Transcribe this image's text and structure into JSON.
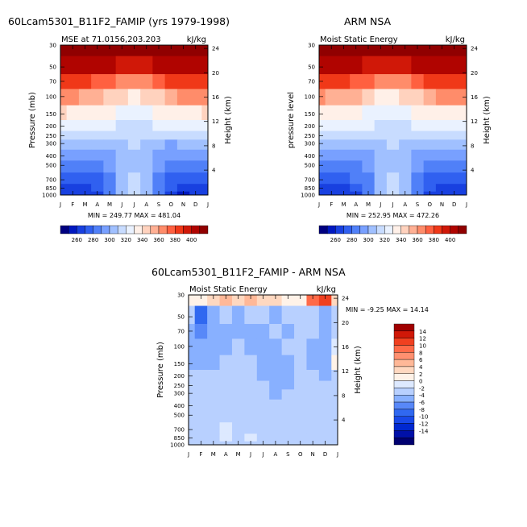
{
  "figure": {
    "left_title": "60Lcam5301_B11F2_FAMIP (yrs 1979-1998)",
    "right_title": "ARM NSA",
    "diff_title": "60Lcam5301_B11F2_FAMIP - ARM NSA"
  },
  "chart_data": [
    {
      "type": "heatmap",
      "panel": "model",
      "subtitle_left": "MSE at 71.0156,203.203",
      "subtitle_right": "kJ/kg",
      "ylabel": "Pressure (mb)",
      "ylabel_right": "Height (km)",
      "x_tick_labels": [
        "J",
        "F",
        "M",
        "A",
        "M",
        "J",
        "J",
        "A",
        "S",
        "O",
        "N",
        "D",
        "J"
      ],
      "y_ticks": [
        30,
        50,
        70,
        100,
        150,
        200,
        250,
        300,
        400,
        500,
        700,
        850,
        1000
      ],
      "height_ticks": [
        4,
        8,
        12,
        16,
        20,
        24
      ],
      "min_max_text": "MIN = 249.77  MAX = 481.04",
      "colorbar_labels": [
        "260",
        "280",
        "300",
        "320",
        "340",
        "360",
        "380",
        "400"
      ],
      "colors": [
        "#000080",
        "#0018c0",
        "#1840e0",
        "#3060f0",
        "#5080f8",
        "#78a0ff",
        "#a0c0ff",
        "#c8dcff",
        "#eaf2ff",
        "#fff0e8",
        "#ffd2be",
        "#ffb094",
        "#ff8c6a",
        "#ff6040",
        "#f03818",
        "#d01808",
        "#b00400",
        "#900000"
      ],
      "levels": [
        255,
        260,
        270,
        280,
        290,
        300,
        310,
        320,
        330,
        340,
        350,
        360,
        370,
        380,
        390,
        400,
        410
      ],
      "p_levels": [
        30,
        50,
        70,
        100,
        150,
        200,
        250,
        300,
        400,
        500,
        700,
        850,
        1000
      ],
      "values": [
        [
          410,
          410,
          410,
          410,
          410,
          410,
          410,
          410,
          410,
          410,
          410,
          410,
          410
        ],
        [
          405,
          405,
          404,
          402,
          400,
          397,
          396,
          398,
          401,
          404,
          406,
          405,
          405
        ],
        [
          385,
          384,
          382,
          378,
          373,
          368,
          366,
          369,
          375,
          381,
          385,
          385,
          385
        ],
        [
          362,
          360,
          357,
          352,
          346,
          340,
          338,
          342,
          349,
          356,
          362,
          362,
          362
        ],
        [
          340,
          338,
          336,
          333,
          330,
          327,
          326,
          328,
          331,
          335,
          339,
          339,
          340
        ],
        [
          326,
          325,
          324,
          322,
          320,
          318,
          317,
          318,
          320,
          323,
          326,
          326,
          326
        ],
        [
          315,
          315,
          314,
          313,
          312,
          311,
          311,
          311,
          312,
          313,
          315,
          315,
          315
        ],
        [
          304,
          303,
          302,
          302,
          303,
          308,
          310,
          307,
          302,
          299,
          301,
          303,
          304
        ],
        [
          292,
          291,
          291,
          292,
          295,
          305,
          309,
          304,
          295,
          290,
          290,
          291,
          292
        ],
        [
          285,
          284,
          284,
          286,
          291,
          304,
          308,
          302,
          291,
          285,
          282,
          283,
          285
        ],
        [
          276,
          274,
          275,
          279,
          288,
          304,
          310,
          302,
          288,
          278,
          273,
          274,
          276
        ],
        [
          268,
          266,
          267,
          273,
          286,
          306,
          312,
          303,
          286,
          272,
          265,
          266,
          268
        ],
        [
          262,
          260,
          261,
          268,
          284,
          305,
          311,
          302,
          284,
          268,
          259,
          260,
          262
        ]
      ]
    },
    {
      "type": "heatmap",
      "panel": "obs",
      "subtitle_left": "Moist Static Energy",
      "subtitle_right": "kJ/kg",
      "ylabel": "pressure level",
      "ylabel_right": "Height (km)",
      "x_tick_labels": [
        "J",
        "F",
        "M",
        "A",
        "M",
        "J",
        "J",
        "A",
        "S",
        "O",
        "N",
        "D",
        "J"
      ],
      "y_ticks": [
        30,
        50,
        70,
        100,
        150,
        200,
        250,
        300,
        400,
        500,
        700,
        850,
        1000
      ],
      "height_ticks": [
        4,
        8,
        12,
        16,
        20,
        24
      ],
      "min_max_text": "MIN = 252.95  MAX = 472.26",
      "colorbar_labels": [
        "260",
        "280",
        "300",
        "320",
        "340",
        "360",
        "380",
        "400"
      ],
      "colors": [
        "#000080",
        "#0018c0",
        "#1840e0",
        "#3060f0",
        "#5080f8",
        "#78a0ff",
        "#a0c0ff",
        "#c8dcff",
        "#eaf2ff",
        "#fff0e8",
        "#ffd2be",
        "#ffb094",
        "#ff8c6a",
        "#ff6040",
        "#f03818",
        "#d01808",
        "#b00400",
        "#900000"
      ],
      "levels": [
        255,
        260,
        270,
        280,
        290,
        300,
        310,
        320,
        330,
        340,
        350,
        360,
        370,
        380,
        390,
        400,
        410
      ],
      "p_levels": [
        30,
        50,
        70,
        100,
        150,
        200,
        250,
        300,
        400,
        500,
        700,
        850,
        1000
      ],
      "values": [
        [
          410,
          410,
          410,
          410,
          410,
          410,
          410,
          410,
          410,
          410,
          410,
          410,
          410
        ],
        [
          404,
          404,
          403,
          401,
          399,
          396,
          395,
          397,
          400,
          403,
          405,
          404,
          404
        ],
        [
          384,
          383,
          381,
          377,
          372,
          367,
          365,
          368,
          374,
          380,
          384,
          384,
          384
        ],
        [
          361,
          359,
          356,
          351,
          345,
          339,
          337,
          341,
          348,
          355,
          361,
          361,
          361
        ],
        [
          339,
          337,
          335,
          332,
          329,
          326,
          325,
          327,
          330,
          334,
          338,
          338,
          339
        ],
        [
          326,
          325,
          324,
          322,
          320,
          318,
          317,
          318,
          320,
          323,
          326,
          326,
          326
        ],
        [
          316,
          315,
          314,
          313,
          312,
          311,
          311,
          311,
          312,
          313,
          315,
          316,
          316
        ],
        [
          305,
          304,
          303,
          303,
          304,
          308,
          310,
          307,
          303,
          300,
          302,
          304,
          305
        ],
        [
          293,
          292,
          292,
          293,
          296,
          305,
          309,
          304,
          296,
          291,
          291,
          292,
          293
        ],
        [
          286,
          285,
          285,
          287,
          292,
          304,
          308,
          302,
          292,
          286,
          283,
          284,
          286
        ],
        [
          277,
          275,
          276,
          280,
          289,
          304,
          310,
          302,
          289,
          279,
          274,
          275,
          277
        ],
        [
          269,
          267,
          268,
          274,
          287,
          305,
          311,
          303,
          287,
          273,
          266,
          267,
          269
        ],
        [
          263,
          261,
          262,
          269,
          285,
          305,
          311,
          302,
          285,
          269,
          260,
          261,
          263
        ]
      ]
    },
    {
      "type": "heatmap",
      "panel": "diff",
      "subtitle_left": "Moist Static Energy",
      "subtitle_right": "kJ/kg",
      "ylabel": "Pressure (mb)",
      "ylabel_right": "Height (km)",
      "x_tick_labels": [
        "J",
        "F",
        "M",
        "A",
        "M",
        "J",
        "J",
        "A",
        "S",
        "O",
        "N",
        "D",
        "J"
      ],
      "y_ticks": [
        30,
        50,
        70,
        100,
        150,
        200,
        250,
        300,
        400,
        500,
        700,
        850,
        1000
      ],
      "height_ticks": [
        4,
        8,
        12,
        16,
        20,
        24
      ],
      "min_max_text": "MIN =  -9.25  MAX =  14.14",
      "colorbar_labels": [
        "14",
        "12",
        "10",
        "8",
        "6",
        "4",
        "2",
        "0",
        "-2",
        "-4",
        "-6",
        "-8",
        "-10",
        "-12",
        "-14"
      ],
      "colors": [
        "#000070",
        "#0010a8",
        "#0028d0",
        "#1848e8",
        "#3068f0",
        "#5888f8",
        "#88b0ff",
        "#b8d0ff",
        "#dde9ff",
        "#fff2e8",
        "#ffd8c0",
        "#ffb898",
        "#ff9070",
        "#ff6a48",
        "#f04020",
        "#d01808",
        "#a00000"
      ],
      "levels": [
        -14,
        -12,
        -10,
        -8,
        -6,
        -4,
        -2,
        0,
        2,
        4,
        6,
        8,
        10,
        12,
        14
      ],
      "p_levels": [
        30,
        50,
        70,
        100,
        150,
        200,
        250,
        300,
        400,
        500,
        700,
        850,
        1000
      ],
      "values": [
        [
          3,
          2,
          4,
          6,
          5,
          6,
          5,
          4,
          3,
          2,
          11,
          13,
          5
        ],
        [
          -2,
          -7,
          -3,
          -2,
          -3,
          -2,
          -2,
          -3,
          -2,
          -1,
          -2,
          -4,
          -2
        ],
        [
          -3,
          -5,
          -3,
          -3,
          -3,
          -3,
          -3,
          -2,
          -3,
          -2,
          -2,
          -3,
          -1
        ],
        [
          -3,
          -4,
          -3,
          -3,
          -2,
          -3,
          -3,
          -3,
          -2,
          -2,
          -3,
          -3,
          1
        ],
        [
          -3,
          -3,
          -3,
          -2,
          -2,
          -1,
          -3,
          -3,
          -3,
          -2,
          -3,
          -3,
          2
        ],
        [
          -2,
          -2,
          -2,
          -2,
          -2,
          -2,
          -3,
          -3,
          -3,
          -2,
          -2,
          -3,
          -1
        ],
        [
          -2,
          -2,
          -2,
          -2,
          -2,
          -2,
          -2,
          -3,
          -4,
          -2,
          -2,
          -2,
          -1
        ],
        [
          -2,
          -2,
          -2,
          -2,
          -2,
          -1,
          -2,
          -3,
          -2,
          -2,
          -2,
          -2,
          -1
        ],
        [
          -1,
          -1,
          -1,
          -2,
          -1,
          -1,
          -1,
          -1,
          -1,
          -1,
          -1,
          -2,
          -1
        ],
        [
          -1,
          -1,
          -1,
          -1,
          -1,
          -1,
          -1,
          -1,
          -1,
          -1,
          -1,
          -1,
          -1
        ],
        [
          -1,
          -1,
          -1,
          1,
          -1,
          -1,
          -1,
          -1,
          -1,
          -1,
          -1,
          -1,
          -2
        ],
        [
          -1,
          -1,
          -1,
          1,
          -1,
          1,
          -1,
          -1,
          -1,
          -1,
          -1,
          -1,
          -2
        ],
        [
          -1,
          -1,
          -1,
          -1,
          -1,
          -1,
          -1,
          -1,
          -1,
          -1,
          -1,
          -1,
          -2
        ]
      ]
    }
  ]
}
